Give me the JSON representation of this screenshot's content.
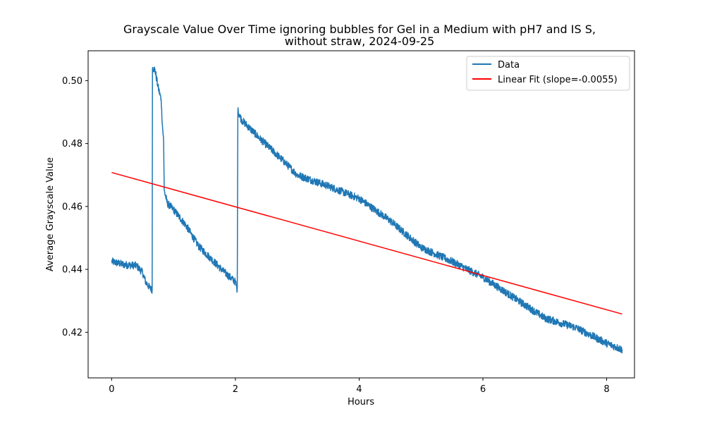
{
  "chart_data": {
    "type": "line",
    "title_line1": "Grayscale Value Over Time ignoring bubbles for Gel in a Medium with pH7 and IS S,",
    "title_line2": "without straw, 2024-09-25",
    "xlabel": "Hours",
    "ylabel": "Average Grayscale Value",
    "xlim": [
      -0.38,
      8.45
    ],
    "ylim": [
      0.4055,
      0.5095
    ],
    "x_ticks": [
      0,
      2,
      4,
      6,
      8
    ],
    "x_tick_labels": [
      "0",
      "2",
      "4",
      "6",
      "8"
    ],
    "y_ticks": [
      0.42,
      0.44,
      0.46,
      0.48,
      0.5
    ],
    "y_tick_labels": [
      "0.42",
      "0.44",
      "0.46",
      "0.48",
      "0.50"
    ],
    "grid": false,
    "legend_position": "top-right",
    "series": [
      {
        "name": "Data",
        "color": "#1f77b4",
        "segments": [
          {
            "x": [
              0.0,
              0.2,
              0.4,
              0.5,
              0.55,
              0.62,
              0.655
            ],
            "y": [
              0.4425,
              0.4415,
              0.4412,
              0.439,
              0.436,
              0.434,
              0.4335
            ]
          },
          {
            "x": [
              0.655,
              0.66,
              0.7,
              0.75,
              0.8,
              0.82,
              0.84
            ],
            "y": [
              0.4335,
              0.504,
              0.5035,
              0.498,
              0.494,
              0.486,
              0.481
            ]
          },
          {
            "x": [
              0.84,
              0.85,
              0.9,
              1.0,
              1.2,
              1.4,
              1.6,
              1.8,
              2.0,
              2.03
            ],
            "y": [
              0.481,
              0.465,
              0.461,
              0.459,
              0.454,
              0.4475,
              0.4435,
              0.4395,
              0.436,
              0.4335
            ]
          },
          {
            "x": [
              2.03,
              2.04,
              2.1,
              2.4,
              2.8,
              3.0,
              3.5,
              4.0,
              4.5,
              5.0,
              5.5,
              6.0,
              6.5,
              7.0,
              7.5,
              8.0,
              8.25
            ],
            "y": [
              0.4335,
              0.4905,
              0.4875,
              0.4815,
              0.474,
              0.47,
              0.4665,
              0.4625,
              0.4555,
              0.447,
              0.4425,
              0.4375,
              0.431,
              0.4245,
              0.4215,
              0.4165,
              0.4145
            ]
          }
        ],
        "noise_amplitude": 0.0012
      },
      {
        "name": "Linear Fit (slope=-0.0055)",
        "color": "#ff0000",
        "x": [
          0.0,
          8.25
        ],
        "y": [
          0.4708,
          0.4258
        ]
      }
    ]
  }
}
